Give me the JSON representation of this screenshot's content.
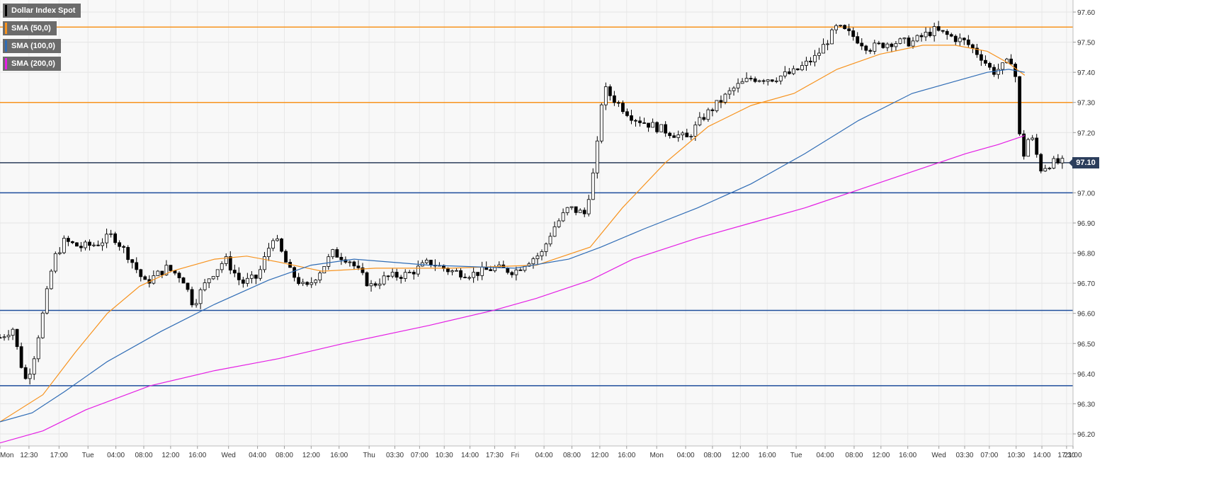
{
  "legend": {
    "title": "Dollar Index Spot",
    "sma50": "SMA (50,0)",
    "sma100": "SMA (100,0)",
    "sma200": "SMA (200,0)",
    "title_color": "#000000",
    "sma50_color": "#f7931e",
    "sma100_color": "#2f6cb5",
    "sma200_color": "#e41ee4"
  },
  "last_price": "97.10",
  "chart_data": {
    "type": "candlestick",
    "grid": true,
    "ylim": [
      96.16,
      97.64
    ],
    "y_ticks": [
      "97.60",
      "97.50",
      "97.40",
      "97.30",
      "97.20",
      "97.10",
      "97.00",
      "96.90",
      "96.80",
      "96.70",
      "96.60",
      "96.50",
      "96.40",
      "96.30",
      "96.20"
    ],
    "y_tick_values": [
      97.6,
      97.5,
      97.4,
      97.3,
      97.2,
      97.1,
      97.0,
      96.9,
      96.8,
      96.7,
      96.6,
      96.5,
      96.4,
      96.3,
      96.2
    ],
    "x_ticks": [
      "Mon",
      "12:30",
      "17:00",
      "Tue",
      "04:00",
      "08:00",
      "12:00",
      "16:00",
      "Wed",
      "04:00",
      "08:00",
      "12:00",
      "16:00",
      "Thu",
      "03:30",
      "07:00",
      "10:30",
      "14:00",
      "17:30",
      "Fri",
      "04:00",
      "08:00",
      "12:00",
      "16:00",
      "Mon",
      "04:00",
      "08:00",
      "12:00",
      "16:00",
      "Tue",
      "04:00",
      "08:00",
      "12:00",
      "16:00",
      "Wed",
      "03:30",
      "07:00",
      "10:30",
      "14:00",
      "17:30",
      "21:00"
    ],
    "x_tick_positions": [
      0,
      0.027,
      0.055,
      0.082,
      0.108,
      0.134,
      0.159,
      0.184,
      0.213,
      0.24,
      0.265,
      0.29,
      0.316,
      0.344,
      0.368,
      0.391,
      0.414,
      0.438,
      0.461,
      0.48,
      0.507,
      0.533,
      0.559,
      0.584,
      0.612,
      0.639,
      0.664,
      0.69,
      0.715,
      0.742,
      0.769,
      0.796,
      0.821,
      0.846,
      0.875,
      0.899,
      0.922,
      0.947,
      0.971,
      0.994,
      1.0
    ],
    "horizontal_levels": [
      {
        "value": 97.55,
        "color": "#f7931e"
      },
      {
        "value": 97.3,
        "color": "#f7931e"
      },
      {
        "value": 97.1,
        "color": "#2c3e5c"
      },
      {
        "value": 97.0,
        "color": "#1f4e9c"
      },
      {
        "value": 96.61,
        "color": "#1f4e9c"
      },
      {
        "value": 96.36,
        "color": "#1f4e9c"
      }
    ],
    "price_keypoints": [
      [
        0,
        96.52
      ],
      [
        0.012,
        96.55
      ],
      [
        0.018,
        96.45
      ],
      [
        0.024,
        96.38
      ],
      [
        0.03,
        96.43
      ],
      [
        0.04,
        96.6
      ],
      [
        0.05,
        96.78
      ],
      [
        0.06,
        96.84
      ],
      [
        0.075,
        96.82
      ],
      [
        0.09,
        96.83
      ],
      [
        0.105,
        96.86
      ],
      [
        0.12,
        96.79
      ],
      [
        0.135,
        96.7
      ],
      [
        0.155,
        96.75
      ],
      [
        0.17,
        96.72
      ],
      [
        0.18,
        96.63
      ],
      [
        0.195,
        96.72
      ],
      [
        0.21,
        96.78
      ],
      [
        0.225,
        96.7
      ],
      [
        0.24,
        96.72
      ],
      [
        0.255,
        96.86
      ],
      [
        0.27,
        96.74
      ],
      [
        0.285,
        96.68
      ],
      [
        0.3,
        96.75
      ],
      [
        0.31,
        96.8
      ],
      [
        0.325,
        96.78
      ],
      [
        0.345,
        96.69
      ],
      [
        0.36,
        96.72
      ],
      [
        0.38,
        96.73
      ],
      [
        0.4,
        96.77
      ],
      [
        0.42,
        96.74
      ],
      [
        0.44,
        96.73
      ],
      [
        0.46,
        96.75
      ],
      [
        0.48,
        96.74
      ],
      [
        0.49,
        96.77
      ],
      [
        0.505,
        96.8
      ],
      [
        0.515,
        96.88
      ],
      [
        0.53,
        96.95
      ],
      [
        0.545,
        96.93
      ],
      [
        0.555,
        97.1
      ],
      [
        0.562,
        97.35
      ],
      [
        0.575,
        97.3
      ],
      [
        0.59,
        97.25
      ],
      [
        0.61,
        97.22
      ],
      [
        0.625,
        97.2
      ],
      [
        0.64,
        97.18
      ],
      [
        0.655,
        97.25
      ],
      [
        0.67,
        97.3
      ],
      [
        0.685,
        97.35
      ],
      [
        0.7,
        97.38
      ],
      [
        0.72,
        97.38
      ],
      [
        0.74,
        97.4
      ],
      [
        0.76,
        97.45
      ],
      [
        0.78,
        97.55
      ],
      [
        0.795,
        97.52
      ],
      [
        0.81,
        97.48
      ],
      [
        0.83,
        97.5
      ],
      [
        0.85,
        97.5
      ],
      [
        0.87,
        97.54
      ],
      [
        0.885,
        97.52
      ],
      [
        0.9,
        97.5
      ],
      [
        0.915,
        97.45
      ],
      [
        0.925,
        97.4
      ],
      [
        0.935,
        97.42
      ],
      [
        0.945,
        97.45
      ],
      [
        0.952,
        97.1
      ],
      [
        0.96,
        97.2
      ],
      [
        0.97,
        97.08
      ],
      [
        0.98,
        97.1
      ],
      [
        0.99,
        97.1
      ]
    ],
    "series": [
      {
        "name": "SMA (50,0)",
        "color": "#f7931e",
        "points": [
          [
            0,
            96.24
          ],
          [
            0.04,
            96.33
          ],
          [
            0.07,
            96.47
          ],
          [
            0.1,
            96.6
          ],
          [
            0.13,
            96.69
          ],
          [
            0.16,
            96.74
          ],
          [
            0.2,
            96.78
          ],
          [
            0.23,
            96.79
          ],
          [
            0.26,
            96.77
          ],
          [
            0.3,
            96.74
          ],
          [
            0.35,
            96.75
          ],
          [
            0.42,
            96.75
          ],
          [
            0.5,
            96.76
          ],
          [
            0.55,
            96.82
          ],
          [
            0.58,
            96.95
          ],
          [
            0.62,
            97.1
          ],
          [
            0.66,
            97.22
          ],
          [
            0.7,
            97.29
          ],
          [
            0.74,
            97.33
          ],
          [
            0.78,
            97.41
          ],
          [
            0.82,
            97.46
          ],
          [
            0.86,
            97.49
          ],
          [
            0.89,
            97.49
          ],
          [
            0.92,
            97.47
          ],
          [
            0.94,
            97.43
          ],
          [
            0.955,
            97.39
          ]
        ]
      },
      {
        "name": "SMA (100,0)",
        "color": "#2f6cb5",
        "points": [
          [
            0,
            96.24
          ],
          [
            0.03,
            96.27
          ],
          [
            0.06,
            96.34
          ],
          [
            0.1,
            96.44
          ],
          [
            0.15,
            96.54
          ],
          [
            0.2,
            96.63
          ],
          [
            0.25,
            96.71
          ],
          [
            0.29,
            96.76
          ],
          [
            0.33,
            96.78
          ],
          [
            0.4,
            96.76
          ],
          [
            0.48,
            96.75
          ],
          [
            0.53,
            96.78
          ],
          [
            0.56,
            96.82
          ],
          [
            0.6,
            96.88
          ],
          [
            0.65,
            96.95
          ],
          [
            0.7,
            97.03
          ],
          [
            0.75,
            97.13
          ],
          [
            0.8,
            97.24
          ],
          [
            0.85,
            97.33
          ],
          [
            0.89,
            97.37
          ],
          [
            0.92,
            97.4
          ],
          [
            0.94,
            97.41
          ],
          [
            0.955,
            97.4
          ]
        ]
      },
      {
        "name": "SMA (200,0)",
        "color": "#e41ee4",
        "points": [
          [
            0,
            96.17
          ],
          [
            0.04,
            96.21
          ],
          [
            0.08,
            96.28
          ],
          [
            0.14,
            96.36
          ],
          [
            0.2,
            96.41
          ],
          [
            0.26,
            96.45
          ],
          [
            0.32,
            96.5
          ],
          [
            0.4,
            96.56
          ],
          [
            0.46,
            96.61
          ],
          [
            0.5,
            96.65
          ],
          [
            0.55,
            96.71
          ],
          [
            0.59,
            96.78
          ],
          [
            0.65,
            96.85
          ],
          [
            0.7,
            96.9
          ],
          [
            0.75,
            96.95
          ],
          [
            0.8,
            97.01
          ],
          [
            0.85,
            97.07
          ],
          [
            0.9,
            97.13
          ],
          [
            0.93,
            97.16
          ],
          [
            0.955,
            97.19
          ]
        ]
      }
    ]
  }
}
